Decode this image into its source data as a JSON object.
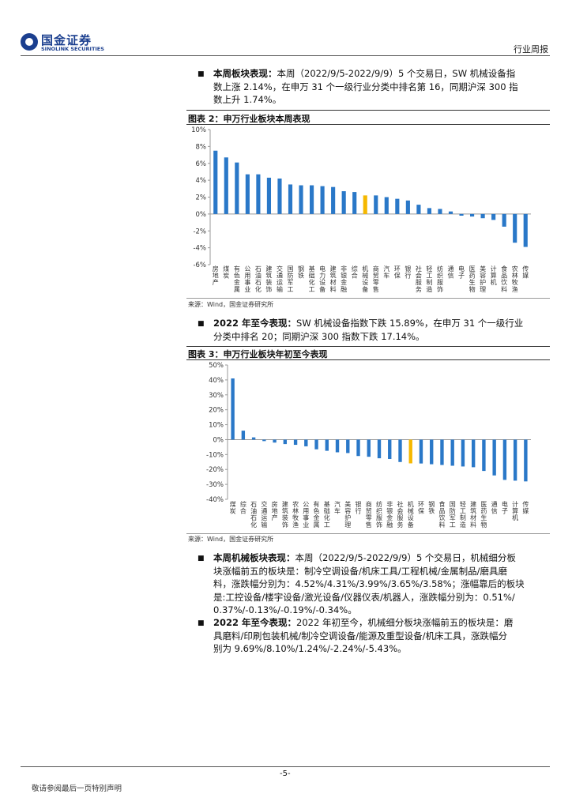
{
  "header": {
    "logo_cn": "国金证券",
    "logo_en": "SINOLINK SECURITIES",
    "report_type": "行业周报"
  },
  "para1": {
    "title": "本周板块表现：",
    "lines": [
      "本周（2022/9/5-2022/9/9）5 个交易日，SW 机械设备指",
      "数上涨 2.14%，在申万 31 个一级行业分类中排名第 16，同期沪深 300 指",
      "数上升 1.74%。"
    ]
  },
  "fig2": {
    "title": "图表 2：申万行业板块本周表现",
    "source": "来源：Wind，国金证券研究所"
  },
  "para2": {
    "title": "2022 年至今表现：",
    "lines": [
      "SW 机械设备指数下跌 15.89%，在申万 31 个一级行业",
      "分类中排名 20；同期沪深 300 指数下跌 17.14%。"
    ]
  },
  "fig3": {
    "title": "图表 3：申万行业板块年初至今表现",
    "source": "来源：Wind，国金证券研究所"
  },
  "para3": {
    "title": "本周机械板块表现：",
    "lines": [
      "本周（2022/9/5-2022/9/9）5 个交易日，机械细分板",
      "块涨幅前五的板块是：制冷空调设备/机床工具/工程机械/金属制品/磨具磨",
      "料，涨跌幅分别为：4.52%/4.31%/3.99%/3.65%/3.58%；涨幅靠后的板块",
      "是:工控设备/楼宇设备/激光设备/仪器仪表/机器人，涨跌幅分别为：0.51%/",
      "0.37%/-0.13%/-0.19%/-0.34%。"
    ]
  },
  "para4": {
    "title": "2022 年至今表现：",
    "lines": [
      "2022 年初至今，机械细分板块涨幅前五的板块是：磨",
      "具磨料/印刷包装机械/制冷空调设备/能源及重型设备/机床工具，涨跌幅分",
      "别为 9.69%/8.10%/1.24%/-2.24%/-5.43%。"
    ]
  },
  "footer": {
    "page": "-5-",
    "disclaimer": "敬请参阅最后一页特别声明"
  },
  "colors": {
    "bar": "#2a78c8",
    "highlight": "#f5b800",
    "grid_axis": "#999999"
  },
  "chart_data": [
    {
      "type": "bar",
      "title": "图表 2：申万行业板块本周表现",
      "ylim": [
        -6,
        10
      ],
      "yticks": [
        "10%",
        "8%",
        "6%",
        "4%",
        "2%",
        "0%",
        "-2%",
        "-4%",
        "-6%"
      ],
      "highlight_category": "机械设备",
      "categories": [
        "房地产",
        "煤炭",
        "有色金属",
        "公用事业",
        "石油石化",
        "建筑装饰",
        "交通运输",
        "国防军工",
        "钢铁",
        "基础化工",
        "电力设备",
        "建筑材料",
        "非银金融",
        "综合",
        "机械设备",
        "商贸零售",
        "汽车",
        "环保",
        "银行",
        "社会服务",
        "轻工制造",
        "纺织服饰",
        "通信",
        "电子",
        "医药生物",
        "美容护理",
        "计算机",
        "食品饮料",
        "农林牧渔",
        "传媒"
      ],
      "values": [
        7.5,
        6.7,
        6.1,
        4.7,
        4.7,
        4.3,
        4.2,
        3.5,
        3.4,
        3.4,
        3.3,
        3.2,
        2.7,
        2.6,
        2.2,
        2.2,
        2.0,
        1.8,
        1.6,
        1.1,
        0.7,
        0.6,
        0.3,
        -0.2,
        -0.3,
        -0.5,
        -0.7,
        -1.5,
        -3.4,
        -3.9
      ]
    },
    {
      "type": "bar",
      "title": "图表 3：申万行业板块年初至今表现",
      "ylim": [
        -40,
        50
      ],
      "yticks": [
        "50%",
        "40%",
        "30%",
        "20%",
        "10%",
        "0%",
        "-10%",
        "-20%",
        "-30%",
        "-40%"
      ],
      "highlight_category": "机械设备",
      "categories": [
        "煤炭",
        "综合",
        "石油石化",
        "交通运输",
        "房地产",
        "建筑装饰",
        "农林牧渔",
        "公用事业",
        "有色金属",
        "基础化工",
        "汽车",
        "美容护理",
        "银行",
        "商贸零售",
        "纺织服饰",
        "非银金融",
        "社会服务",
        "机械设备",
        "环保",
        "钢铁",
        "食品饮料",
        "国防军工",
        "轻工制造",
        "建筑材料",
        "医药生物",
        "通信",
        "电子",
        "计算机",
        "传媒"
      ],
      "values": [
        41,
        6,
        1.5,
        -1,
        -2,
        -3,
        -3.5,
        -4.5,
        -6.5,
        -7.5,
        -8.5,
        -9,
        -11,
        -11.5,
        -12.5,
        -13,
        -15,
        -15.9,
        -16,
        -16.5,
        -17,
        -17.5,
        -18,
        -18.5,
        -21,
        -24,
        -27,
        -27.5,
        -28
      ]
    }
  ]
}
